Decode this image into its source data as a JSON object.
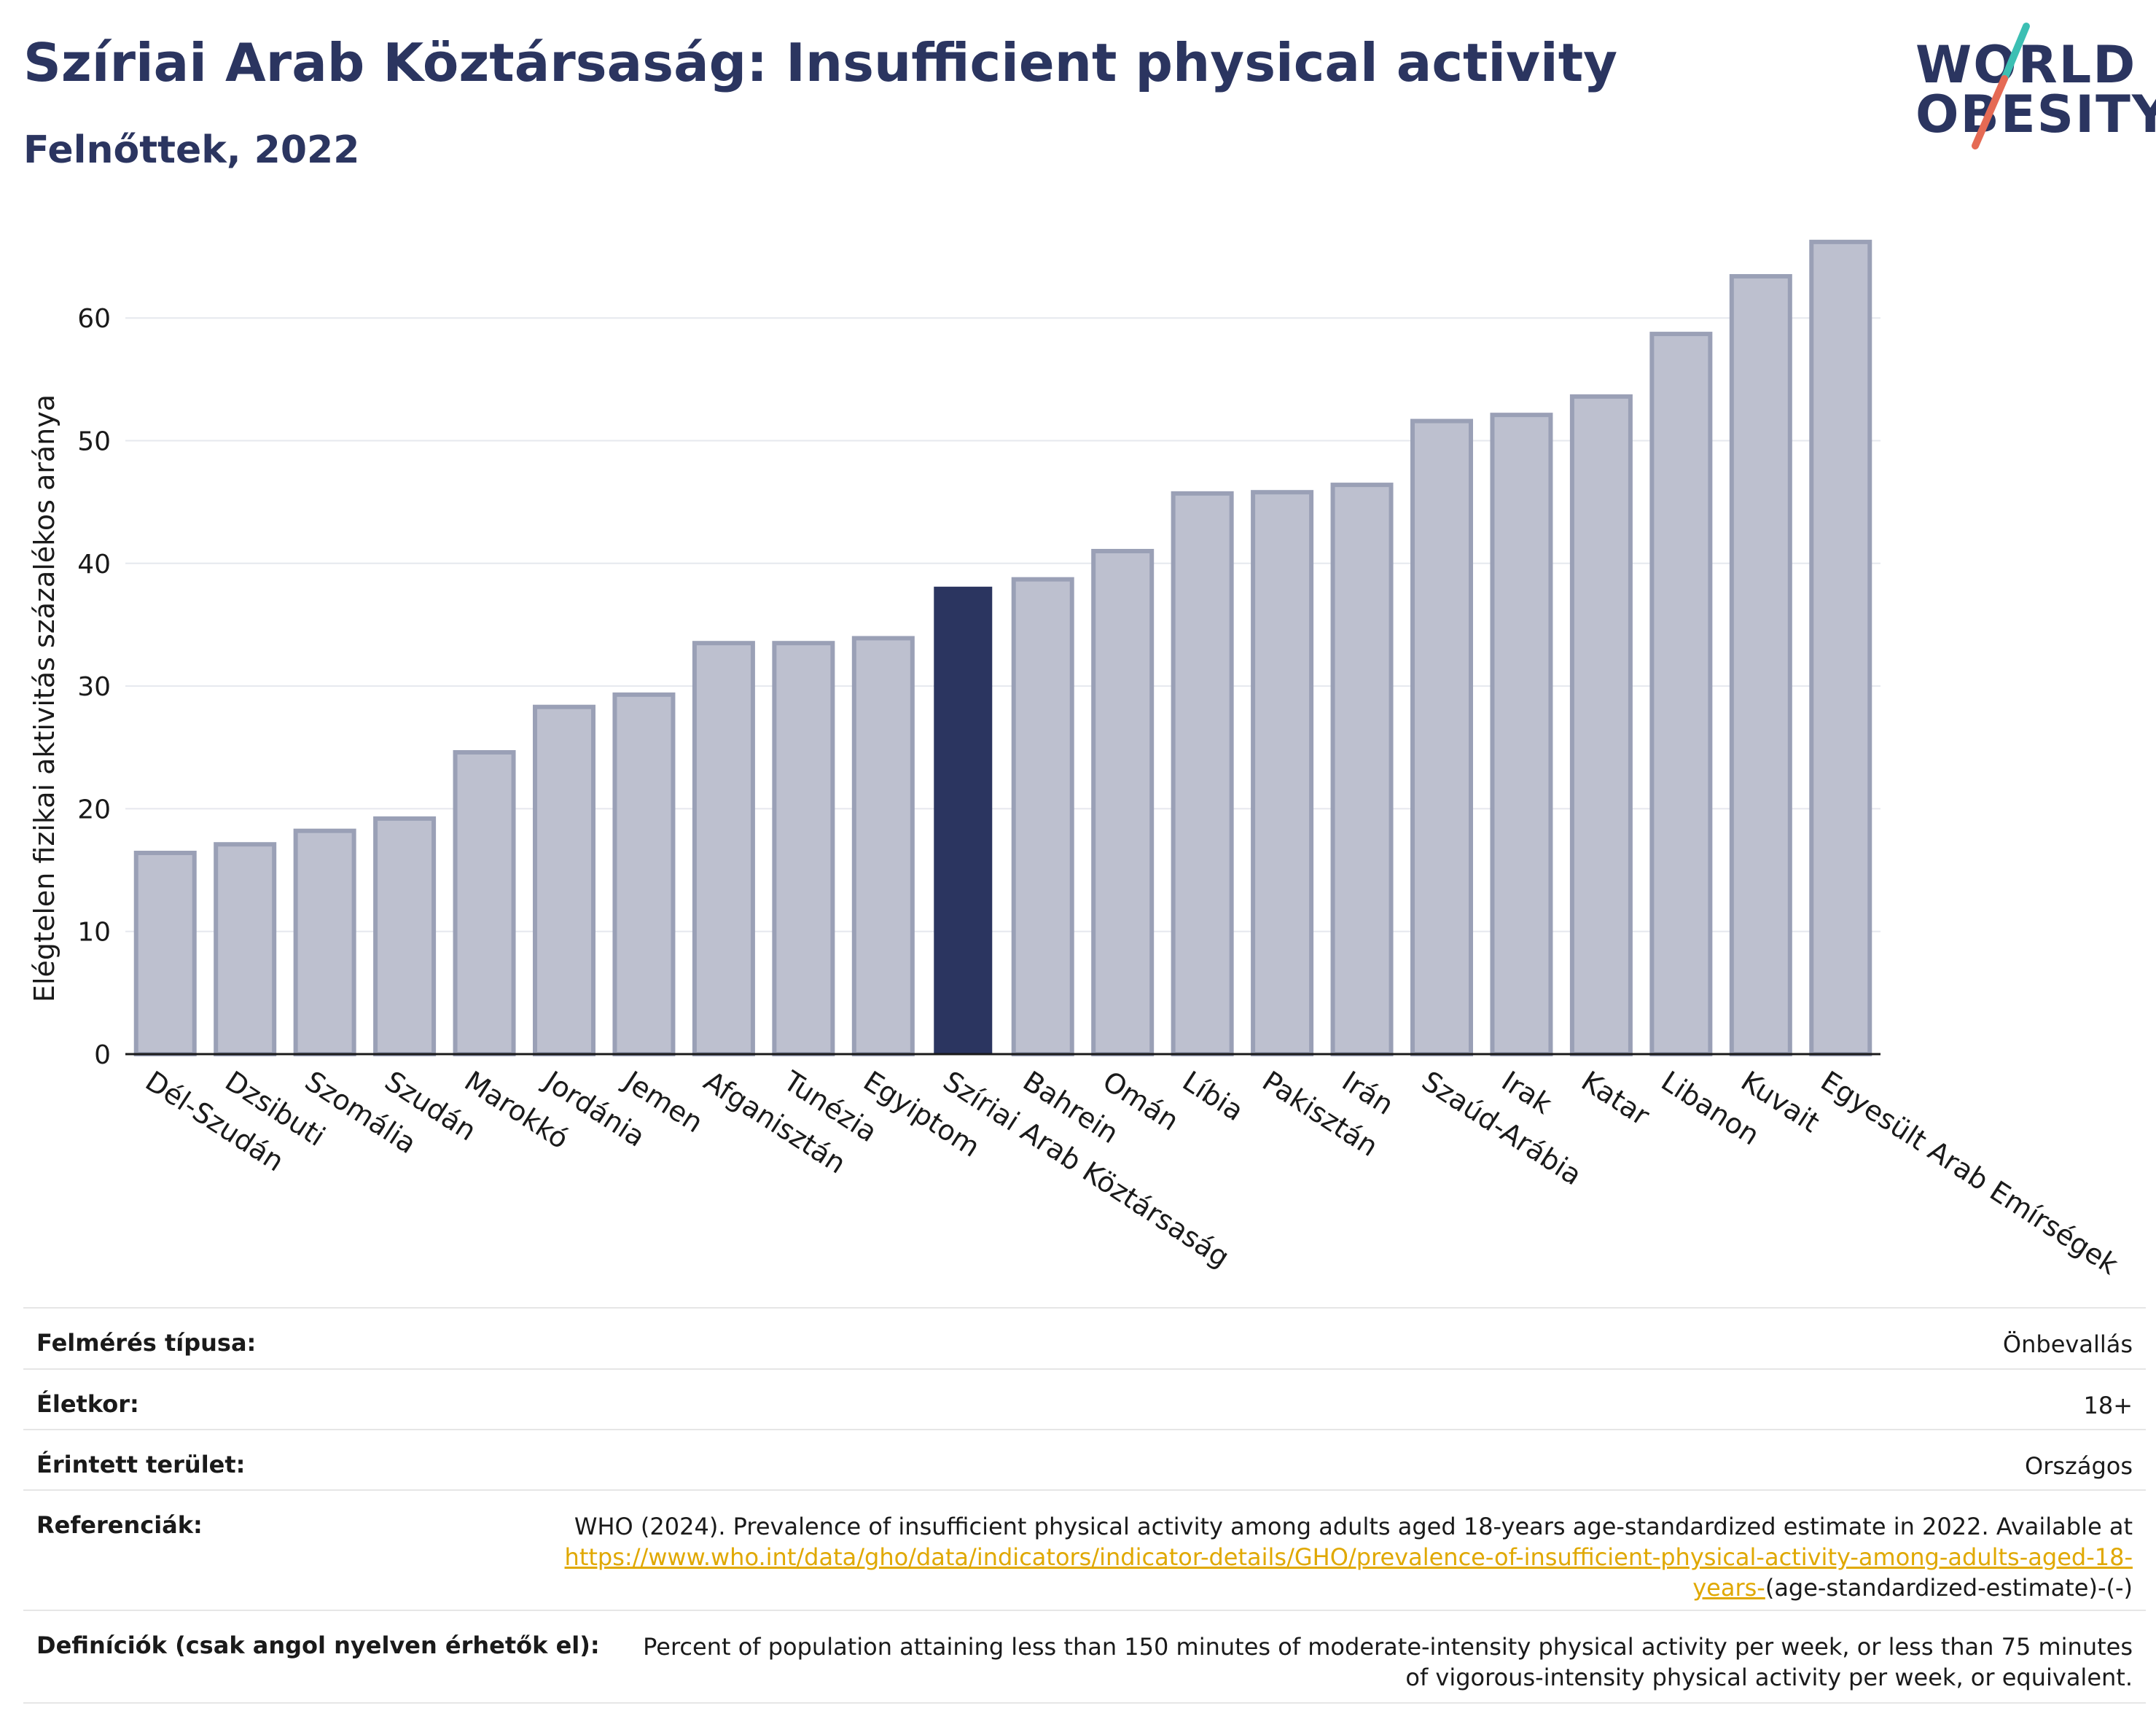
{
  "header": {
    "title": "Szíriai Arab Köztársaság: Insufficient physical activity",
    "subtitle": "Felnőttek, 2022"
  },
  "logo": {
    "line1": "WORLD",
    "line2": "OBESITY",
    "accent_color": "#e56a54",
    "accent_color2": "#3cbfb3"
  },
  "colors": {
    "bar": "#bdc0cf",
    "bar_border": "#9aa0b6",
    "highlight": "#2b3560",
    "grid": "#e6e8ee"
  },
  "chart_data": {
    "type": "bar",
    "ylabel": "Elégtelen fizikai aktivitás százalékos aránya",
    "ylim": [
      0,
      68
    ],
    "yticks": [
      0,
      10,
      20,
      30,
      40,
      50,
      60
    ],
    "grid": true,
    "highlight": "Szíriai Arab Köztársaság",
    "categories": [
      "Dél-Szudán",
      "Dzsibuti",
      "Szomália",
      "Szudán",
      "Marokkó",
      "Jordánia",
      "Jemen",
      "Afganisztán",
      "Tunézia",
      "Egyiptom",
      "Szíriai Arab Köztársaság",
      "Bahrein",
      "Omán",
      "Líbia",
      "Pakisztán",
      "Irán",
      "Szaúd-Arábia",
      "Irak",
      "Katar",
      "Libanon",
      "Kuvait",
      "Egyesült Arab Emírségek"
    ],
    "values": [
      16.4,
      17.1,
      18.2,
      19.2,
      24.6,
      28.3,
      29.3,
      33.5,
      33.5,
      33.9,
      38.1,
      38.7,
      41.0,
      45.7,
      45.8,
      46.4,
      51.6,
      52.1,
      53.6,
      58.7,
      63.4,
      66.2
    ]
  },
  "meta": {
    "rows": [
      {
        "label": "Felmérés típusa:",
        "value": "Önbevallás"
      },
      {
        "label": "Életkor:",
        "value": "18+"
      },
      {
        "label": "Érintett terület:",
        "value": "Országos"
      }
    ],
    "references": {
      "label": "Referenciák:",
      "text": "WHO (2024). Prevalence of insufficient physical activity among adults aged 18-years age-standardized estimate in 2022. Available at",
      "link": "https://www.who.int/data/gho/data/indicators/indicator-details/GHO/prevalence-of-insufficient-physical-activity-among-adults-aged-18-years-",
      "tail": "(age-standardized-estimate)-(-)"
    },
    "definitions": {
      "label": "Definíciók (csak angol nyelven érhetők el):",
      "text": "Percent of population attaining less than 150 minutes of moderate-intensity physical activity per week, or less than 75 minutes of vigorous-intensity physical activity per week, or equivalent."
    }
  }
}
